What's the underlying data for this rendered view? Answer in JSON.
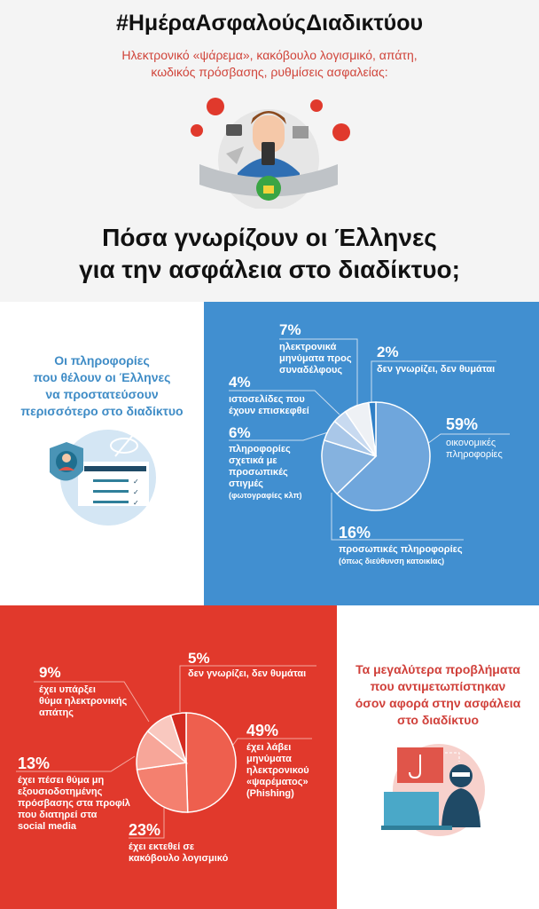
{
  "header": {
    "hashtag": "#ΗμέραΑσφαλούςΔιαδικτύου",
    "subtitle_line1": "Ηλεκτρονικό «ψάρεμα», κακόβουλο λογισμικό, απάτη,",
    "subtitle_line2": "κωδικός πρόσβασης, ρυθμίσεις ασφαλείας:",
    "headline_line1": "Πόσα γνωρίζουν οι Έλληνες",
    "headline_line2": "για την ασφάλεια στο διαδίκτυο;"
  },
  "info_panel": {
    "line1": "Οι πληροφορίες",
    "line2": "που θέλουν οι Έλληνες",
    "line3": "να προστατεύσουν",
    "line4": "περισσότερο στο διαδίκτυο"
  },
  "problems_panel": {
    "line1": "Τα μεγαλύτερα προβλήματα",
    "line2": "που αντιμετωπίστηκαν",
    "line3": "όσον αφορά στην ασφάλεια",
    "line4": "στο διαδίκτυο"
  },
  "colors": {
    "blue_bg": "#418fd0",
    "red_bg": "#e1392c",
    "title_red": "#d0443a",
    "title_blue": "#3f8cc6"
  },
  "chart_data": [
    {
      "type": "pie",
      "title": "",
      "order": "clockwise from top",
      "slices": [
        {
          "label": "59%",
          "value": 59,
          "lines": [
            "οικονομικές",
            "πληροφορίες"
          ],
          "note": "",
          "color": "#6fa6dc"
        },
        {
          "label": "16%",
          "value": 16,
          "lines": [
            "προσωπικές πληροφορίες"
          ],
          "note": "(όπως διεύθυνση κατοικίας)",
          "color": "#85b2df"
        },
        {
          "label": "6%",
          "value": 6,
          "lines": [
            "πληροφορίες",
            "σχετικά με",
            "προσωπικές",
            "στιγμές"
          ],
          "note": "(φωτογραφίες κλπ)",
          "color": "#a9c7e8"
        },
        {
          "label": "4%",
          "value": 4,
          "lines": [
            "ιστοσελίδες που",
            "έχουν επισκεφθεί"
          ],
          "note": "",
          "color": "#c8daf0"
        },
        {
          "label": "7%",
          "value": 7,
          "lines": [
            "ηλεκτρονικά",
            "μηνύματα προς",
            "συναδέλφους"
          ],
          "note": "",
          "color": "#eef1f5"
        },
        {
          "label": "2%",
          "value": 2,
          "lines": [
            "δεν γνωρίζει, δεν θυμάται"
          ],
          "note": "",
          "color": "#2f7fc6"
        }
      ]
    },
    {
      "type": "pie",
      "title": "",
      "order": "clockwise from top",
      "slices": [
        {
          "label": "49%",
          "value": 49,
          "lines": [
            "έχει λάβει",
            "μηνύματα",
            "ηλεκτρονικού",
            "«ψαρέματος»",
            "(Phishing)"
          ],
          "color": "#ee5f4e"
        },
        {
          "label": "23%",
          "value": 23,
          "lines": [
            "έχει εκτεθεί σε",
            "κακόβουλο λογισμικό"
          ],
          "color": "#f4806f"
        },
        {
          "label": "13%",
          "value": 13,
          "lines": [
            "έχει πέσει θύμα μη",
            "εξουσιοδοτημένης",
            "πρόσβασης στα προφίλ",
            "που διατηρεί στα",
            "social media"
          ],
          "color": "#f7a699"
        },
        {
          "label": "9%",
          "value": 9,
          "lines": [
            "έχει υπάρξει",
            "θύμα ηλεκτρονικής",
            "απάτης"
          ],
          "color": "#f9c8bf"
        },
        {
          "label": "5%",
          "value": 5,
          "lines": [
            "δεν γνωρίζει, δεν θυμάται"
          ],
          "color": "#d42a20"
        }
      ]
    }
  ]
}
